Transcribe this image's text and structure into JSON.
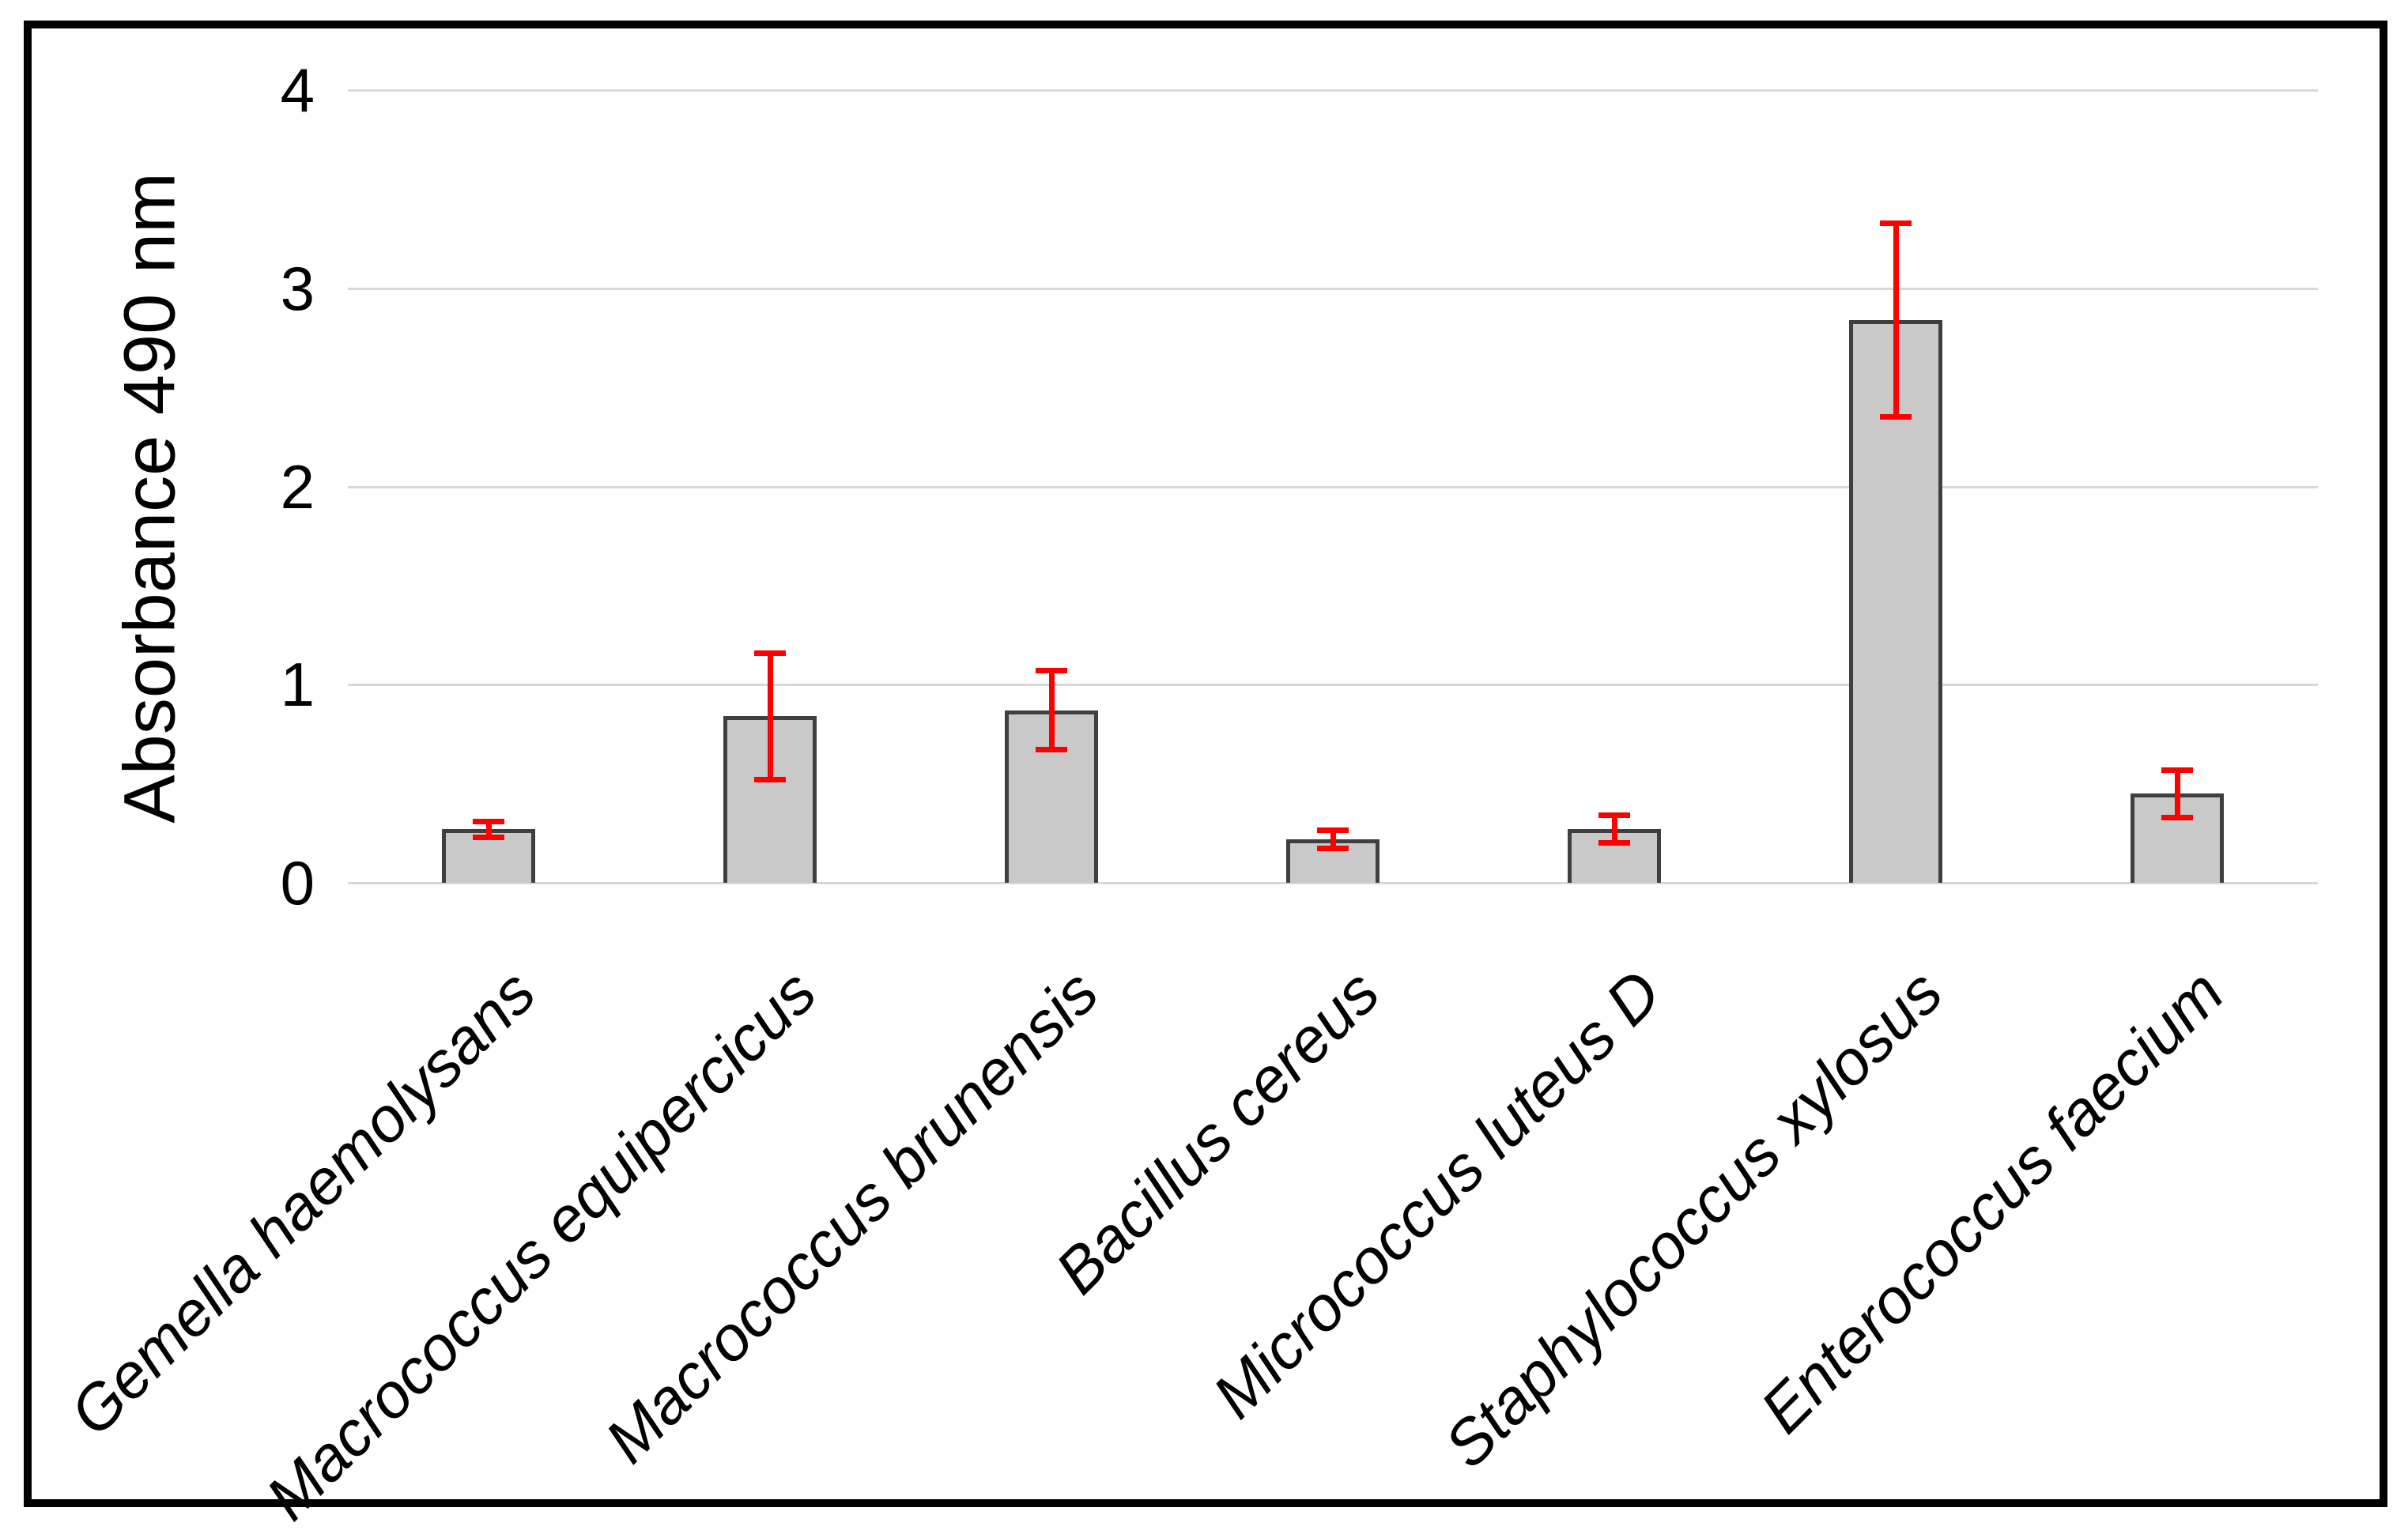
{
  "figure": {
    "background_color": "#ffffff",
    "border_color": "#000000"
  },
  "chart_data": {
    "type": "bar",
    "title": "",
    "xlabel": "",
    "ylabel": "Absorbance 490 nm",
    "ylim": [
      0,
      4
    ],
    "yticks": [
      "0",
      "1",
      "2",
      "3",
      "4"
    ],
    "grid": "horizontal gridlines at each y tick",
    "legend_position": "none",
    "categories": [
      "Gemella haemolysans",
      "Macrococcus equipercicus",
      "Macrococcus brunensis",
      "Bacillus cereus",
      "Micrococcus luteus D",
      "Staphylococcus xylosus",
      "Enterococcus faecium"
    ],
    "series": [
      {
        "name": "Absorbance 490 nm",
        "values": [
          0.27,
          0.84,
          0.87,
          0.22,
          0.27,
          2.84,
          0.45
        ],
        "errors": [
          0.04,
          0.32,
          0.2,
          0.045,
          0.07,
          0.49,
          0.12
        ]
      }
    ],
    "bar_fill_color": "#c9c9c9",
    "bar_border_color": "#3f3f3f",
    "error_bar_color": "#ff0000",
    "gridline_color": "#d9d9d9",
    "text_color": "#000000",
    "category_label_style": "italic, rotated 45 degrees"
  }
}
